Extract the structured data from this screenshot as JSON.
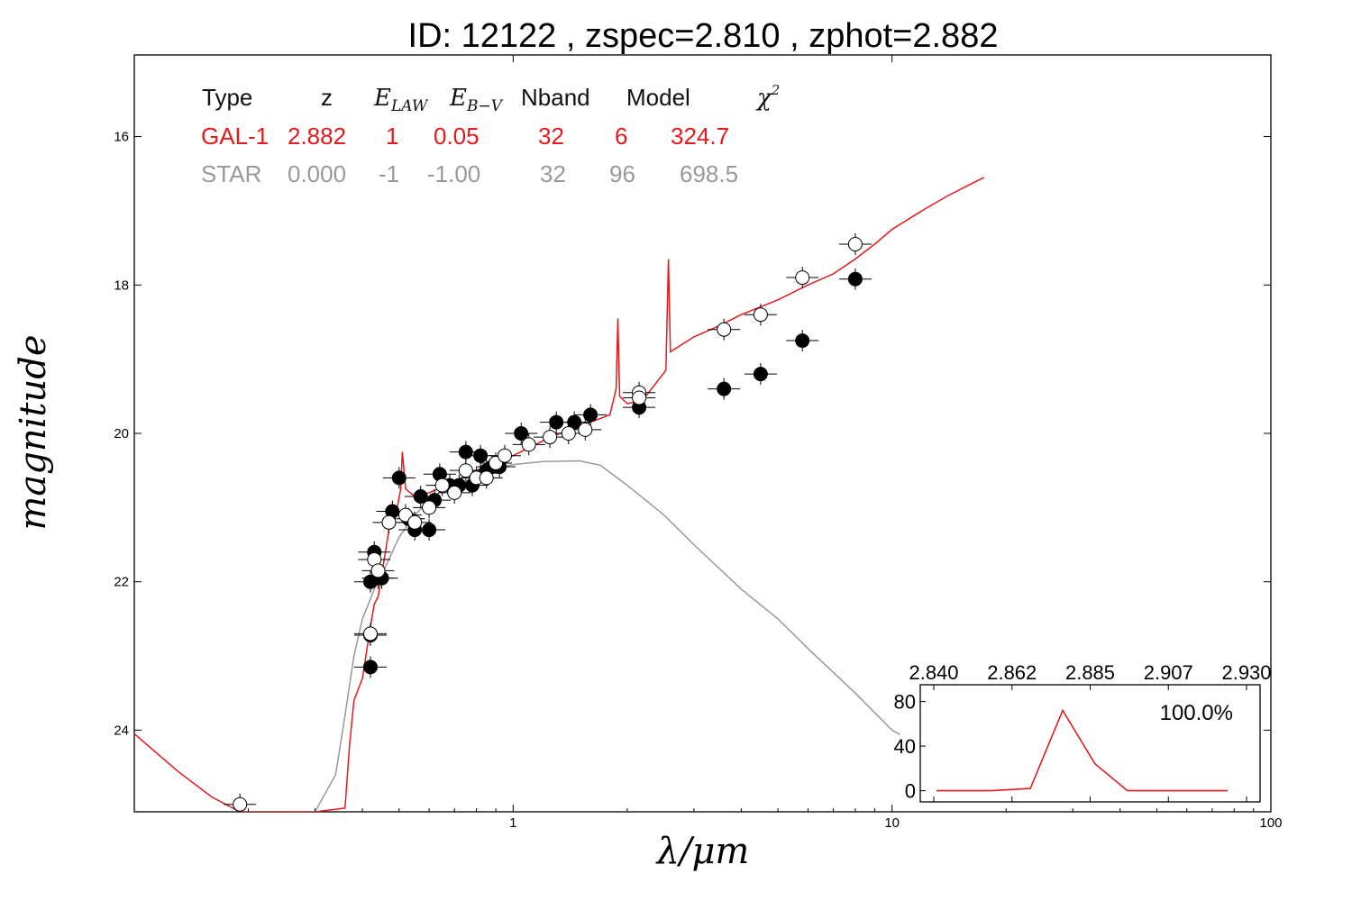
{
  "chart_data": {
    "type": "scatter",
    "title": "ID:  12122 , zspec=2.810 , zphot=2.882",
    "xlabel": "λ/μm",
    "ylabel": "magnitude",
    "xscale": "log",
    "xlim": [
      0.1,
      100
    ],
    "ylim": [
      25.1,
      14.9
    ],
    "yinverted": true,
    "x_ticks": [
      {
        "v": 1,
        "label": "1"
      },
      {
        "v": 10,
        "label": "10"
      },
      {
        "v": 100,
        "label": "100"
      }
    ],
    "y_ticks": [
      {
        "v": 16,
        "label": "16"
      },
      {
        "v": 18,
        "label": "18"
      },
      {
        "v": 20,
        "label": "20"
      },
      {
        "v": 22,
        "label": "22"
      },
      {
        "v": 24,
        "label": "24"
      }
    ],
    "grid": false,
    "legend_table": {
      "headers": [
        "Type",
        "z",
        "E_LAW",
        "E_B-V",
        "Nband",
        "Model",
        "χ²"
      ],
      "rows": [
        {
          "type": "GAL-1",
          "z": "2.882",
          "elaw": "1",
          "ebv": "0.05",
          "nband": "32",
          "model": "6",
          "chi2": "324.7",
          "color": "#e41a1c"
        },
        {
          "type": "STAR",
          "z": "0.000",
          "elaw": "-1",
          "ebv": "-1.00",
          "nband": "32",
          "model": "96",
          "chi2": "698.5",
          "color": "#999999"
        }
      ]
    },
    "series": [
      {
        "name": "GAL-1",
        "kind": "line",
        "color": "#e41a1c",
        "points": [
          [
            0.1,
            24.05
          ],
          [
            0.13,
            24.55
          ],
          [
            0.16,
            24.9
          ],
          [
            0.19,
            25.1
          ],
          [
            0.3,
            25.1
          ],
          [
            0.36,
            25.05
          ],
          [
            0.37,
            24.2
          ],
          [
            0.38,
            23.6
          ],
          [
            0.4,
            23.3
          ],
          [
            0.42,
            22.6
          ],
          [
            0.43,
            22.3
          ],
          [
            0.44,
            22.2
          ],
          [
            0.45,
            21.9
          ],
          [
            0.47,
            21.3
          ],
          [
            0.49,
            21.1
          ],
          [
            0.505,
            20.75
          ],
          [
            0.51,
            20.25
          ],
          [
            0.52,
            20.75
          ],
          [
            0.55,
            20.85
          ],
          [
            0.6,
            20.8
          ],
          [
            0.7,
            20.65
          ],
          [
            0.8,
            20.5
          ],
          [
            1.0,
            20.3
          ],
          [
            1.2,
            20.1
          ],
          [
            1.4,
            19.95
          ],
          [
            1.6,
            19.85
          ],
          [
            1.8,
            19.75
          ],
          [
            1.87,
            19.4
          ],
          [
            1.89,
            18.45
          ],
          [
            1.91,
            19.5
          ],
          [
            2.0,
            19.6
          ],
          [
            2.2,
            19.55
          ],
          [
            2.4,
            19.3
          ],
          [
            2.53,
            19.15
          ],
          [
            2.57,
            17.65
          ],
          [
            2.6,
            18.9
          ],
          [
            3.0,
            18.7
          ],
          [
            3.5,
            18.55
          ],
          [
            4.0,
            18.4
          ],
          [
            5.0,
            18.2
          ],
          [
            6.0,
            18.0
          ],
          [
            7.0,
            17.85
          ],
          [
            8.0,
            17.65
          ],
          [
            9.0,
            17.45
          ],
          [
            10.0,
            17.25
          ],
          [
            12.0,
            17.0
          ],
          [
            14.0,
            16.8
          ],
          [
            16.0,
            16.65
          ],
          [
            17.5,
            16.55
          ]
        ]
      },
      {
        "name": "STAR",
        "kind": "line",
        "color": "#999999",
        "points": [
          [
            0.3,
            25.1
          ],
          [
            0.34,
            24.6
          ],
          [
            0.36,
            23.8
          ],
          [
            0.38,
            23.0
          ],
          [
            0.4,
            22.5
          ],
          [
            0.43,
            22.1
          ],
          [
            0.46,
            21.8
          ],
          [
            0.5,
            21.4
          ],
          [
            0.55,
            21.1
          ],
          [
            0.6,
            20.9
          ],
          [
            0.7,
            20.65
          ],
          [
            0.8,
            20.52
          ],
          [
            1.0,
            20.42
          ],
          [
            1.2,
            20.38
          ],
          [
            1.5,
            20.37
          ],
          [
            1.7,
            20.43
          ],
          [
            2.0,
            20.7
          ],
          [
            2.5,
            21.1
          ],
          [
            3.0,
            21.5
          ],
          [
            4.0,
            22.1
          ],
          [
            5.0,
            22.5
          ],
          [
            6.0,
            22.9
          ],
          [
            8.0,
            23.5
          ],
          [
            10.0,
            24.0
          ],
          [
            10.5,
            24.06
          ]
        ]
      },
      {
        "name": "observed",
        "kind": "filled-markers",
        "color": "#000000",
        "points": [
          [
            0.43,
            21.6
          ],
          [
            0.44,
            21.95
          ],
          [
            0.45,
            21.95
          ],
          [
            0.42,
            22.0
          ],
          [
            0.42,
            23.15
          ],
          [
            0.42,
            22.72
          ],
          [
            0.48,
            21.05
          ],
          [
            0.5,
            20.6
          ],
          [
            0.53,
            21.15
          ],
          [
            0.55,
            21.3
          ],
          [
            0.57,
            20.85
          ],
          [
            0.6,
            21.3
          ],
          [
            0.62,
            20.9
          ],
          [
            0.64,
            20.55
          ],
          [
            0.68,
            20.7
          ],
          [
            0.72,
            20.7
          ],
          [
            0.75,
            20.25
          ],
          [
            0.78,
            20.7
          ],
          [
            0.82,
            20.3
          ],
          [
            0.85,
            20.5
          ],
          [
            0.88,
            20.45
          ],
          [
            0.92,
            20.45
          ],
          [
            1.05,
            20.0
          ],
          [
            1.3,
            19.85
          ],
          [
            1.45,
            19.85
          ],
          [
            1.6,
            19.75
          ],
          [
            2.15,
            19.65
          ],
          [
            3.6,
            19.4
          ],
          [
            4.5,
            19.2
          ],
          [
            5.8,
            18.75
          ],
          [
            8.0,
            17.92
          ]
        ]
      },
      {
        "name": "model",
        "kind": "open-markers",
        "color": "#ffffff",
        "points": [
          [
            0.19,
            25.0
          ],
          [
            0.42,
            22.7
          ],
          [
            0.43,
            21.7
          ],
          [
            0.44,
            21.85
          ],
          [
            0.47,
            21.2
          ],
          [
            0.52,
            21.1
          ],
          [
            0.55,
            21.2
          ],
          [
            0.6,
            21.0
          ],
          [
            0.65,
            20.7
          ],
          [
            0.7,
            20.8
          ],
          [
            0.75,
            20.5
          ],
          [
            0.8,
            20.6
          ],
          [
            0.85,
            20.6
          ],
          [
            0.9,
            20.4
          ],
          [
            0.95,
            20.3
          ],
          [
            1.1,
            20.15
          ],
          [
            1.25,
            20.05
          ],
          [
            1.4,
            20.0
          ],
          [
            1.55,
            19.95
          ],
          [
            2.15,
            19.45
          ],
          [
            2.15,
            19.52
          ],
          [
            3.6,
            18.6
          ],
          [
            4.5,
            18.4
          ],
          [
            5.8,
            17.9
          ],
          [
            8.0,
            17.45
          ]
        ]
      }
    ],
    "inset": {
      "type": "line",
      "top_ticks": [
        "2.840",
        "2.862",
        "2.885",
        "2.907",
        "2.930"
      ],
      "xlim": [
        2.829,
        2.934
      ],
      "ylim": [
        -10,
        95
      ],
      "y_ticks": [
        {
          "v": 0,
          "label": "0"
        },
        {
          "v": 40,
          "label": "40"
        },
        {
          "v": 80,
          "label": "80"
        }
      ],
      "label": "100.0%",
      "color": "#e41a1c",
      "points": [
        [
          2.834,
          0
        ],
        [
          2.851,
          0
        ],
        [
          2.863,
          2
        ],
        [
          2.873,
          72
        ],
        [
          2.883,
          24
        ],
        [
          2.893,
          0
        ],
        [
          2.924,
          0
        ]
      ]
    }
  }
}
